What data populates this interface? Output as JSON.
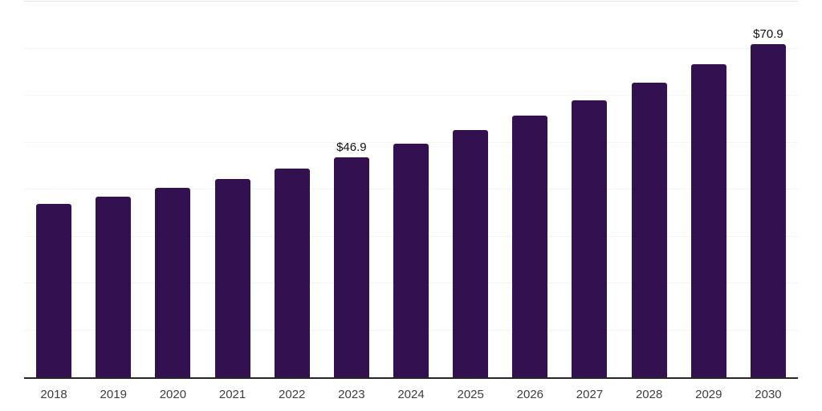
{
  "chart": {
    "colors": {
      "background": "#ffffff",
      "bar": "#331050",
      "gridline": "#f3f3f3",
      "gridline_top": "#e4e4e4",
      "axis_line": "#262626",
      "tick_label": "#3d3d3d",
      "data_label": "#111111"
    }
  },
  "chart_data": {
    "type": "bar",
    "title": "",
    "xlabel": "",
    "ylabel": "",
    "categories": [
      "2018",
      "2019",
      "2020",
      "2021",
      "2022",
      "2023",
      "2024",
      "2025",
      "2026",
      "2027",
      "2028",
      "2029",
      "2030"
    ],
    "values": [
      36.9,
      38.5,
      40.4,
      42.3,
      44.4,
      46.9,
      49.8,
      52.6,
      55.8,
      59.0,
      62.8,
      66.7,
      70.9
    ],
    "data_labels": [
      "",
      "",
      "",
      "",
      "",
      "$46.9",
      "",
      "",
      "",
      "",
      "",
      "",
      "$70.9"
    ],
    "ylim": [
      0,
      80
    ],
    "grid_step": 10,
    "grid": true,
    "y_tick_labels_visible": false,
    "legend": false,
    "legend_position": "none",
    "currency_prefix": "$"
  }
}
